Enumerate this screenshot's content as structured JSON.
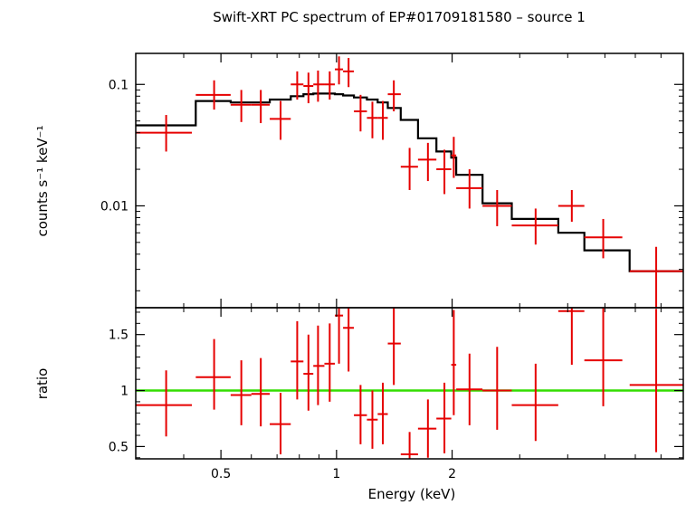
{
  "chart_data": [
    {
      "type": "scatter",
      "panel": "spectrum",
      "title": "Swift-XRT PC spectrum of EP#01709181580 – source 1",
      "ylabel": "counts s⁻¹ keV⁻¹",
      "xlabel": "",
      "xscale": "log",
      "yscale": "log",
      "xlim": [
        0.3,
        8.0
      ],
      "ylim": [
        0.00145,
        0.18
      ],
      "yticks": [
        0.01,
        0.1
      ],
      "ytick_labels": [
        "0.01",
        "0.1"
      ],
      "xticks": [
        0.5,
        1,
        2
      ],
      "series": [
        {
          "name": "data",
          "color": "#e60000",
          "points": [
            {
              "x": 0.36,
              "xlo": 0.3,
              "xhi": 0.42,
              "y": 0.04,
              "ylo": 0.028,
              "yhi": 0.056
            },
            {
              "x": 0.48,
              "xlo": 0.43,
              "xhi": 0.53,
              "y": 0.082,
              "ylo": 0.062,
              "yhi": 0.108
            },
            {
              "x": 0.565,
              "xlo": 0.53,
              "xhi": 0.6,
              "y": 0.068,
              "ylo": 0.049,
              "yhi": 0.09
            },
            {
              "x": 0.635,
              "xlo": 0.6,
              "xhi": 0.67,
              "y": 0.068,
              "ylo": 0.048,
              "yhi": 0.09
            },
            {
              "x": 0.715,
              "xlo": 0.67,
              "xhi": 0.76,
              "y": 0.052,
              "ylo": 0.035,
              "yhi": 0.073
            },
            {
              "x": 0.79,
              "xlo": 0.76,
              "xhi": 0.82,
              "y": 0.1,
              "ylo": 0.075,
              "yhi": 0.128
            },
            {
              "x": 0.845,
              "xlo": 0.82,
              "xhi": 0.87,
              "y": 0.097,
              "ylo": 0.07,
              "yhi": 0.125
            },
            {
              "x": 0.895,
              "xlo": 0.87,
              "xhi": 0.93,
              "y": 0.1,
              "ylo": 0.072,
              "yhi": 0.13
            },
            {
              "x": 0.96,
              "xlo": 0.93,
              "xhi": 0.99,
              "y": 0.1,
              "ylo": 0.075,
              "yhi": 0.128
            },
            {
              "x": 1.015,
              "xlo": 0.99,
              "xhi": 1.04,
              "y": 0.133,
              "ylo": 0.1,
              "yhi": 0.17
            },
            {
              "x": 1.075,
              "xlo": 1.04,
              "xhi": 1.11,
              "y": 0.128,
              "ylo": 0.095,
              "yhi": 0.165
            },
            {
              "x": 1.155,
              "xlo": 1.11,
              "xhi": 1.2,
              "y": 0.06,
              "ylo": 0.041,
              "yhi": 0.082
            },
            {
              "x": 1.24,
              "xlo": 1.2,
              "xhi": 1.28,
              "y": 0.053,
              "ylo": 0.036,
              "yhi": 0.072
            },
            {
              "x": 1.32,
              "xlo": 1.28,
              "xhi": 1.36,
              "y": 0.053,
              "ylo": 0.035,
              "yhi": 0.073
            },
            {
              "x": 1.41,
              "xlo": 1.36,
              "xhi": 1.47,
              "y": 0.083,
              "ylo": 0.06,
              "yhi": 0.108
            },
            {
              "x": 1.55,
              "xlo": 1.47,
              "xhi": 1.63,
              "y": 0.021,
              "ylo": 0.0135,
              "yhi": 0.03
            },
            {
              "x": 1.73,
              "xlo": 1.63,
              "xhi": 1.82,
              "y": 0.024,
              "ylo": 0.016,
              "yhi": 0.033
            },
            {
              "x": 1.91,
              "xlo": 1.82,
              "xhi": 1.99,
              "y": 0.02,
              "ylo": 0.0125,
              "yhi": 0.029
            },
            {
              "x": 2.02,
              "xlo": 1.99,
              "xhi": 2.05,
              "y": 0.026,
              "ylo": 0.017,
              "yhi": 0.037
            },
            {
              "x": 2.22,
              "xlo": 2.05,
              "xhi": 2.4,
              "y": 0.014,
              "ylo": 0.0095,
              "yhi": 0.02
            },
            {
              "x": 2.62,
              "xlo": 2.4,
              "xhi": 2.86,
              "y": 0.01,
              "ylo": 0.0068,
              "yhi": 0.0135
            },
            {
              "x": 3.3,
              "xlo": 2.86,
              "xhi": 3.78,
              "y": 0.0069,
              "ylo": 0.0048,
              "yhi": 0.0095
            },
            {
              "x": 4.1,
              "xlo": 3.78,
              "xhi": 4.42,
              "y": 0.01,
              "ylo": 0.0074,
              "yhi": 0.0135
            },
            {
              "x": 4.95,
              "xlo": 4.42,
              "xhi": 5.55,
              "y": 0.0055,
              "ylo": 0.0037,
              "yhi": 0.0078
            },
            {
              "x": 6.8,
              "xlo": 5.8,
              "xhi": 8.0,
              "y": 0.0029,
              "ylo": 0.00145,
              "yhi": 0.0046
            }
          ]
        },
        {
          "name": "model",
          "color": "#000000",
          "steps": [
            {
              "xlo": 0.3,
              "xhi": 0.43,
              "y": 0.046
            },
            {
              "xlo": 0.43,
              "xhi": 0.53,
              "y": 0.073
            },
            {
              "xlo": 0.53,
              "xhi": 0.67,
              "y": 0.071
            },
            {
              "xlo": 0.67,
              "xhi": 0.76,
              "y": 0.075
            },
            {
              "xlo": 0.76,
              "xhi": 0.82,
              "y": 0.08
            },
            {
              "xlo": 0.82,
              "xhi": 0.87,
              "y": 0.083
            },
            {
              "xlo": 0.87,
              "xhi": 0.99,
              "y": 0.084
            },
            {
              "xlo": 0.99,
              "xhi": 1.04,
              "y": 0.083
            },
            {
              "xlo": 1.04,
              "xhi": 1.11,
              "y": 0.081
            },
            {
              "xlo": 1.11,
              "xhi": 1.2,
              "y": 0.078
            },
            {
              "xlo": 1.2,
              "xhi": 1.28,
              "y": 0.075
            },
            {
              "xlo": 1.28,
              "xhi": 1.36,
              "y": 0.071
            },
            {
              "xlo": 1.36,
              "xhi": 1.47,
              "y": 0.064
            },
            {
              "xlo": 1.47,
              "xhi": 1.63,
              "y": 0.051
            },
            {
              "xlo": 1.63,
              "xhi": 1.82,
              "y": 0.036
            },
            {
              "xlo": 1.82,
              "xhi": 1.99,
              "y": 0.028
            },
            {
              "xlo": 1.99,
              "xhi": 2.05,
              "y": 0.025
            },
            {
              "xlo": 2.05,
              "xhi": 2.4,
              "y": 0.018
            },
            {
              "xlo": 2.4,
              "xhi": 2.86,
              "y": 0.0105
            },
            {
              "xlo": 2.86,
              "xhi": 3.78,
              "y": 0.0078
            },
            {
              "xlo": 3.78,
              "xhi": 4.42,
              "y": 0.006
            },
            {
              "xlo": 4.42,
              "xhi": 5.8,
              "y": 0.0043
            },
            {
              "xlo": 5.8,
              "xhi": 8.0,
              "y": 0.0029
            }
          ]
        }
      ]
    },
    {
      "type": "scatter",
      "panel": "ratio",
      "ylabel": "ratio",
      "xlabel": "Energy (keV)",
      "xscale": "log",
      "yscale": "linear",
      "xlim": [
        0.3,
        8.0
      ],
      "ylim": [
        0.39,
        1.74
      ],
      "yticks": [
        0.5,
        1,
        1.5
      ],
      "ytick_labels": [
        "0.5",
        "1",
        "1.5"
      ],
      "xticks": [
        0.5,
        1,
        2
      ],
      "xtick_labels": [
        "0.5",
        "1",
        "2"
      ],
      "reference_line": {
        "y": 1,
        "color": "#33dd00"
      },
      "series": [
        {
          "name": "ratio",
          "color": "#e60000",
          "points": [
            {
              "x": 0.36,
              "xlo": 0.3,
              "xhi": 0.42,
              "y": 0.87,
              "ylo": 0.59,
              "yhi": 1.18
            },
            {
              "x": 0.48,
              "xlo": 0.43,
              "xhi": 0.53,
              "y": 1.12,
              "ylo": 0.83,
              "yhi": 1.46
            },
            {
              "x": 0.565,
              "xlo": 0.53,
              "xhi": 0.6,
              "y": 0.96,
              "ylo": 0.69,
              "yhi": 1.27
            },
            {
              "x": 0.635,
              "xlo": 0.6,
              "xhi": 0.67,
              "y": 0.97,
              "ylo": 0.68,
              "yhi": 1.29
            },
            {
              "x": 0.715,
              "xlo": 0.67,
              "xhi": 0.76,
              "y": 0.7,
              "ylo": 0.43,
              "yhi": 0.98
            },
            {
              "x": 0.79,
              "xlo": 0.76,
              "xhi": 0.82,
              "y": 1.26,
              "ylo": 0.92,
              "yhi": 1.62
            },
            {
              "x": 0.845,
              "xlo": 0.82,
              "xhi": 0.87,
              "y": 1.15,
              "ylo": 0.82,
              "yhi": 1.5
            },
            {
              "x": 0.895,
              "xlo": 0.87,
              "xhi": 0.93,
              "y": 1.22,
              "ylo": 0.87,
              "yhi": 1.58
            },
            {
              "x": 0.96,
              "xlo": 0.93,
              "xhi": 0.99,
              "y": 1.24,
              "ylo": 0.9,
              "yhi": 1.6
            },
            {
              "x": 1.015,
              "xlo": 0.99,
              "xhi": 1.04,
              "y": 1.67,
              "ylo": 1.24,
              "yhi": 1.74
            },
            {
              "x": 1.075,
              "xlo": 1.04,
              "xhi": 1.11,
              "y": 1.56,
              "ylo": 1.17,
              "yhi": 1.74
            },
            {
              "x": 1.155,
              "xlo": 1.11,
              "xhi": 1.2,
              "y": 0.78,
              "ylo": 0.52,
              "yhi": 1.05
            },
            {
              "x": 1.24,
              "xlo": 1.2,
              "xhi": 1.28,
              "y": 0.74,
              "ylo": 0.48,
              "yhi": 1.0
            },
            {
              "x": 1.32,
              "xlo": 1.28,
              "xhi": 1.36,
              "y": 0.79,
              "ylo": 0.52,
              "yhi": 1.07
            },
            {
              "x": 1.41,
              "xlo": 1.36,
              "xhi": 1.47,
              "y": 1.42,
              "ylo": 1.05,
              "yhi": 1.74
            },
            {
              "x": 1.55,
              "xlo": 1.47,
              "xhi": 1.63,
              "y": 0.43,
              "ylo": 0.39,
              "yhi": 0.63
            },
            {
              "x": 1.73,
              "xlo": 1.63,
              "xhi": 1.82,
              "y": 0.66,
              "ylo": 0.4,
              "yhi": 0.92
            },
            {
              "x": 1.91,
              "xlo": 1.82,
              "xhi": 1.99,
              "y": 0.75,
              "ylo": 0.44,
              "yhi": 1.07
            },
            {
              "x": 2.02,
              "xlo": 1.99,
              "xhi": 2.05,
              "y": 1.23,
              "ylo": 0.78,
              "yhi": 1.72
            },
            {
              "x": 2.22,
              "xlo": 2.05,
              "xhi": 2.4,
              "y": 1.01,
              "ylo": 0.69,
              "yhi": 1.33
            },
            {
              "x": 2.62,
              "xlo": 2.4,
              "xhi": 2.86,
              "y": 1.0,
              "ylo": 0.65,
              "yhi": 1.39
            },
            {
              "x": 3.3,
              "xlo": 2.86,
              "xhi": 3.78,
              "y": 0.87,
              "ylo": 0.55,
              "yhi": 1.24
            },
            {
              "x": 4.1,
              "xlo": 3.78,
              "xhi": 4.42,
              "y": 1.71,
              "ylo": 1.23,
              "yhi": 1.74
            },
            {
              "x": 4.95,
              "xlo": 4.42,
              "xhi": 5.55,
              "y": 1.27,
              "ylo": 0.86,
              "yhi": 1.74
            },
            {
              "x": 6.8,
              "xlo": 5.8,
              "xhi": 8.0,
              "y": 1.05,
              "ylo": 0.45,
              "yhi": 1.73
            }
          ]
        }
      ]
    }
  ]
}
